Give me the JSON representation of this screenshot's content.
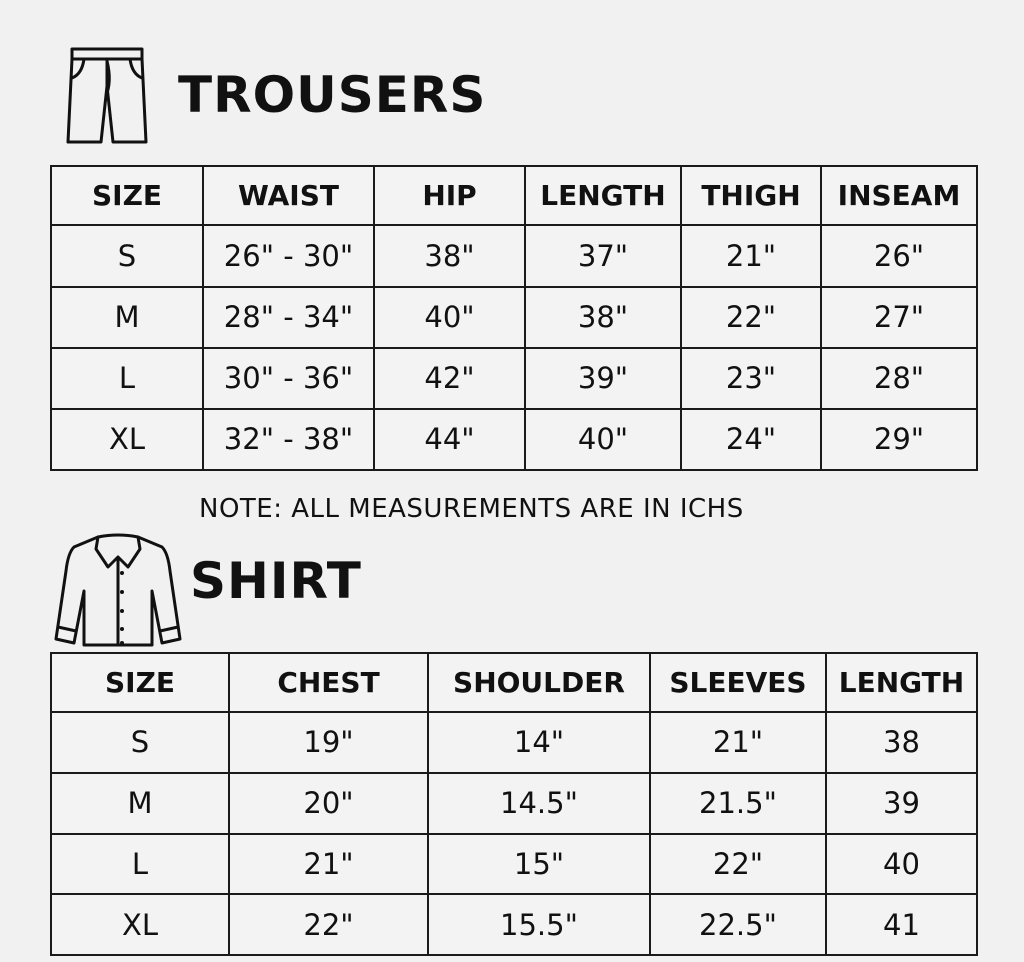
{
  "trousers": {
    "title": "TROUSERS",
    "icon": "trousers-icon",
    "headers": [
      "SIZE",
      "WAIST",
      "HIP",
      "LENGTH",
      "THIGH",
      "INSEAM"
    ],
    "rows": [
      [
        "S",
        "26\" - 30\"",
        "38\"",
        "37\"",
        "21\"",
        "26\""
      ],
      [
        "M",
        "28\" - 34\"",
        "40\"",
        "38\"",
        "22\"",
        "27\""
      ],
      [
        "L",
        "30\" - 36\"",
        "42\"",
        "39\"",
        "23\"",
        "28\""
      ],
      [
        "XL",
        "32\" - 38\"",
        "44\"",
        "40\"",
        "24\"",
        "29\""
      ]
    ]
  },
  "note": "NOTE: ALL MEASUREMENTS ARE IN ICHS",
  "shirt": {
    "title": "SHIRT",
    "icon": "shirt-icon",
    "headers": [
      "SIZE",
      "CHEST",
      "SHOULDER",
      "SLEEVES",
      "LENGTH"
    ],
    "rows": [
      [
        "S",
        "19\"",
        "14\"",
        "21\"",
        "38"
      ],
      [
        "M",
        "20\"",
        "14.5\"",
        "21.5\"",
        "39"
      ],
      [
        "L",
        "21\"",
        "15\"",
        "22\"",
        "40"
      ],
      [
        "XL",
        "22\"",
        "15.5\"",
        "22.5\"",
        "41"
      ]
    ]
  }
}
